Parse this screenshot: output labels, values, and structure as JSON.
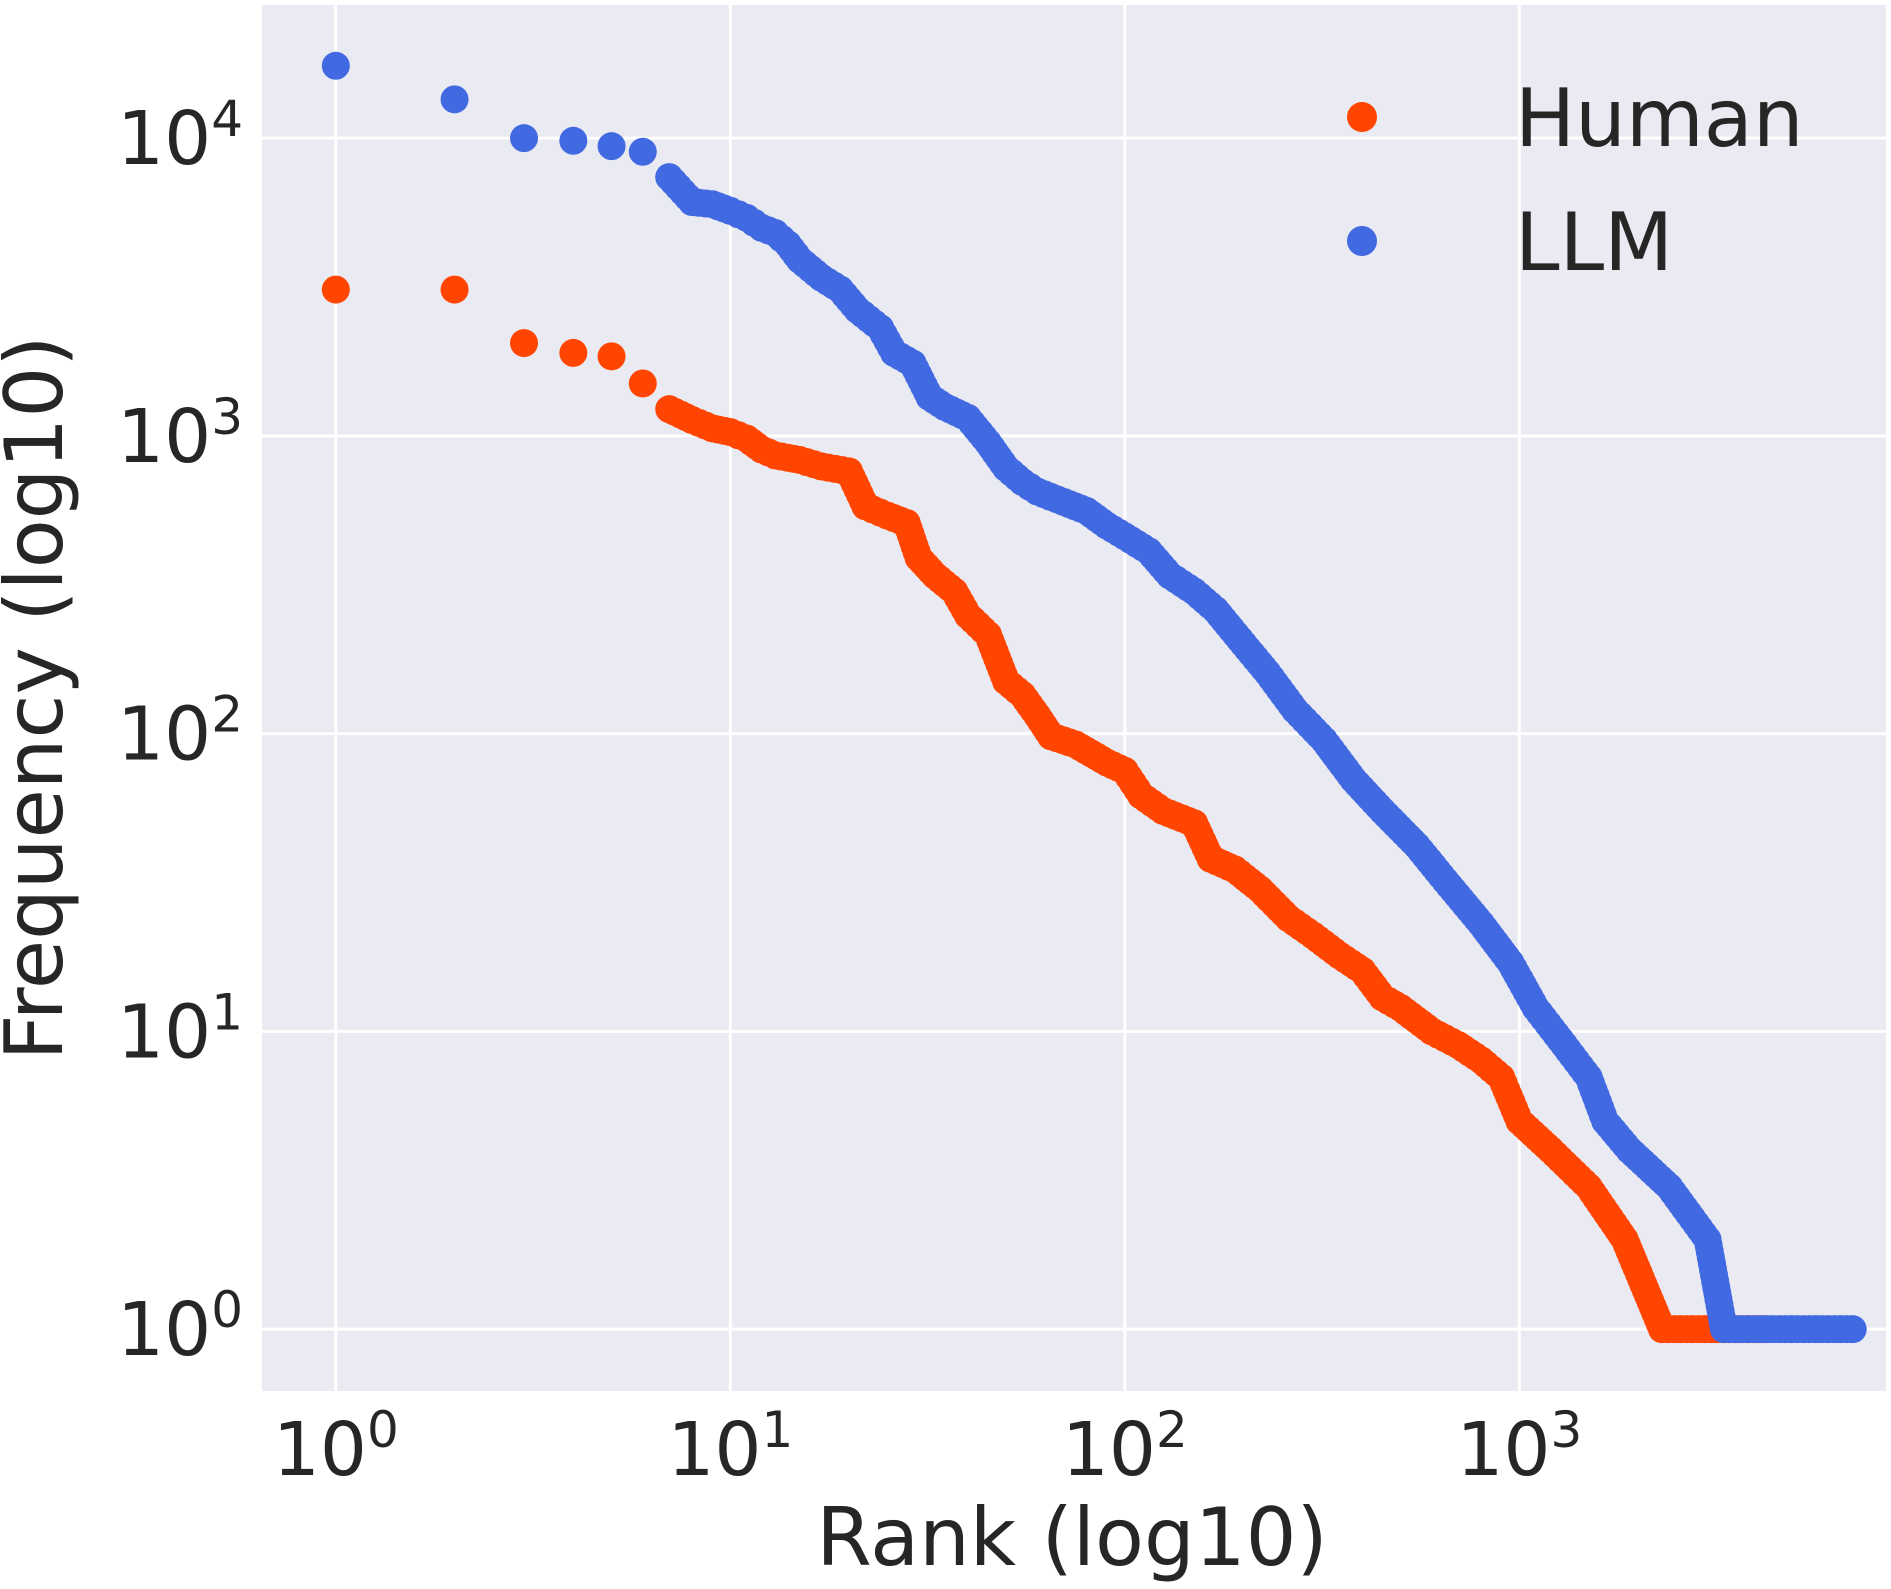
{
  "chart_data": {
    "type": "scatter",
    "xscale": "log",
    "yscale": "log",
    "xlabel": "Rank (log10)",
    "ylabel": "Frequency (log10)",
    "xlim": [
      0.65,
      8500
    ],
    "ylim": [
      0.62,
      28000
    ],
    "grid": true,
    "legend_position": "top-right",
    "x_ticks": [
      {
        "base": "10",
        "exp": "0",
        "value": 1
      },
      {
        "base": "10",
        "exp": "1",
        "value": 10
      },
      {
        "base": "10",
        "exp": "2",
        "value": 100
      },
      {
        "base": "10",
        "exp": "3",
        "value": 1000
      }
    ],
    "y_ticks": [
      {
        "base": "10",
        "exp": "0",
        "value": 1
      },
      {
        "base": "10",
        "exp": "1",
        "value": 10
      },
      {
        "base": "10",
        "exp": "2",
        "value": 100
      },
      {
        "base": "10",
        "exp": "3",
        "value": 1000
      },
      {
        "base": "10",
        "exp": "4",
        "value": 10000
      }
    ],
    "series": [
      {
        "name": "Human",
        "color": "#FF4500",
        "points": [
          [
            1,
            3100
          ],
          [
            2,
            3100
          ],
          [
            3,
            2050
          ],
          [
            4,
            1900
          ],
          [
            5,
            1850
          ],
          [
            6,
            1500
          ],
          [
            7,
            1230
          ],
          [
            8,
            1130
          ],
          [
            9,
            1060
          ],
          [
            10,
            1030
          ],
          [
            11,
            980
          ],
          [
            12,
            900
          ],
          [
            13,
            860
          ],
          [
            15,
            830
          ],
          [
            17,
            790
          ],
          [
            20,
            760
          ],
          [
            22,
            580
          ],
          [
            25,
            540
          ],
          [
            28,
            510
          ],
          [
            30,
            390
          ],
          [
            33,
            340
          ],
          [
            37,
            300
          ],
          [
            40,
            250
          ],
          [
            45,
            215
          ],
          [
            50,
            150
          ],
          [
            55,
            135
          ],
          [
            60,
            115
          ],
          [
            65,
            98
          ],
          [
            75,
            92
          ],
          [
            90,
            80
          ],
          [
            100,
            75
          ],
          [
            110,
            62
          ],
          [
            125,
            55
          ],
          [
            150,
            50
          ],
          [
            165,
            38
          ],
          [
            190,
            35
          ],
          [
            220,
            30
          ],
          [
            260,
            24
          ],
          [
            300,
            21
          ],
          [
            350,
            18
          ],
          [
            400,
            16
          ],
          [
            450,
            13
          ],
          [
            500,
            12
          ],
          [
            600,
            10
          ],
          [
            700,
            9
          ],
          [
            800,
            8
          ],
          [
            900,
            7
          ],
          [
            1000,
            5
          ],
          [
            1200,
            4
          ],
          [
            1500,
            3
          ],
          [
            1850,
            2
          ],
          [
            2300,
            1
          ],
          [
            4200,
            1
          ]
        ]
      },
      {
        "name": "LLM",
        "color": "#4169E1",
        "points": [
          [
            1,
            17500
          ],
          [
            2,
            13500
          ],
          [
            3,
            10000
          ],
          [
            4,
            9800
          ],
          [
            5,
            9400
          ],
          [
            6,
            9000
          ],
          [
            7,
            7400
          ],
          [
            8,
            6100
          ],
          [
            9,
            6000
          ],
          [
            10,
            5700
          ],
          [
            11,
            5400
          ],
          [
            12,
            5000
          ],
          [
            13,
            4800
          ],
          [
            14,
            4400
          ],
          [
            15,
            3900
          ],
          [
            17,
            3400
          ],
          [
            19,
            3100
          ],
          [
            21,
            2650
          ],
          [
            24,
            2300
          ],
          [
            26,
            1900
          ],
          [
            29,
            1750
          ],
          [
            32,
            1350
          ],
          [
            35,
            1250
          ],
          [
            40,
            1150
          ],
          [
            45,
            950
          ],
          [
            50,
            780
          ],
          [
            55,
            700
          ],
          [
            60,
            650
          ],
          [
            70,
            600
          ],
          [
            80,
            560
          ],
          [
            90,
            500
          ],
          [
            100,
            460
          ],
          [
            115,
            410
          ],
          [
            130,
            340
          ],
          [
            150,
            300
          ],
          [
            170,
            260
          ],
          [
            200,
            200
          ],
          [
            230,
            160
          ],
          [
            270,
            120
          ],
          [
            320,
            95
          ],
          [
            380,
            70
          ],
          [
            450,
            55
          ],
          [
            550,
            42
          ],
          [
            650,
            32
          ],
          [
            800,
            23
          ],
          [
            950,
            17
          ],
          [
            1100,
            12
          ],
          [
            1300,
            9
          ],
          [
            1500,
            7
          ],
          [
            1650,
            5
          ],
          [
            1900,
            4
          ],
          [
            2400,
            3
          ],
          [
            3000,
            2
          ],
          [
            3300,
            1
          ],
          [
            7000,
            1
          ]
        ]
      }
    ]
  }
}
